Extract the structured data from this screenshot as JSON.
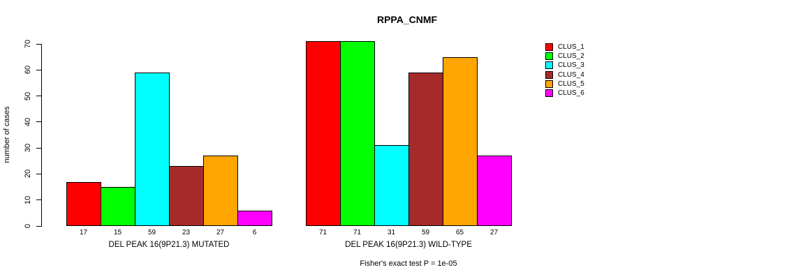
{
  "chart_data": {
    "type": "bar",
    "title": "RPPA_CNMF",
    "ylabel": "number of cases",
    "ylim": [
      0,
      70
    ],
    "yticks": [
      0,
      10,
      20,
      30,
      40,
      50,
      60,
      70
    ],
    "grid": false,
    "legend_position": "right",
    "clusters": [
      "CLUS_1",
      "CLUS_2",
      "CLUS_3",
      "CLUS_4",
      "CLUS_5",
      "CLUS_6"
    ],
    "colors": [
      "#FF0000",
      "#00FF00",
      "#00FFFF",
      "#A52A2A",
      "#FFA500",
      "#FF00FF"
    ],
    "groups": [
      {
        "label": "DEL PEAK 16(9P21.3) MUTATED",
        "values": [
          17,
          15,
          59,
          23,
          27,
          6
        ]
      },
      {
        "label": "DEL PEAK 16(9P21.3) WILD-TYPE",
        "values": [
          71,
          71,
          31,
          59,
          65,
          27
        ]
      }
    ],
    "footnote": "Fisher's exact test P = 1e-05"
  }
}
